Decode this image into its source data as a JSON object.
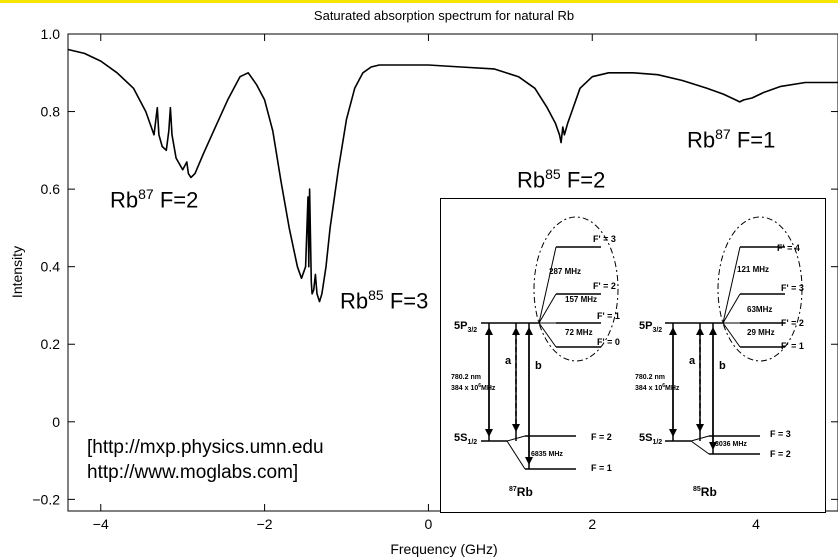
{
  "chart_data": {
    "type": "line",
    "title": "Saturated absorption spectrum for natural Rb",
    "xlabel": "Frequency (GHz)",
    "ylabel": "Intensity",
    "xlim": [
      -4.4,
      5.0
    ],
    "ylim": [
      -0.23,
      1.0
    ],
    "x_ticks": [
      -4,
      -2,
      0,
      2,
      4
    ],
    "x_tick_labels": [
      "−4",
      "−2",
      "0",
      "2",
      "4"
    ],
    "y_ticks": [
      -0.2,
      0,
      0.2,
      0.4,
      0.6,
      0.8,
      1.0
    ],
    "y_tick_labels": [
      "−0.2",
      "0",
      "0.2",
      "0.4",
      "0.6",
      "0.8",
      "1.0"
    ],
    "series": [
      {
        "x": [
          -4.4,
          -4.2,
          -4.0,
          -3.8,
          -3.6,
          -3.45,
          -3.35,
          -3.31,
          -3.29,
          -3.25,
          -3.2,
          -3.17,
          -3.15,
          -3.13,
          -3.08,
          -3.0,
          -2.95,
          -2.93,
          -2.9,
          -2.85,
          -2.75,
          -2.6,
          -2.45,
          -2.3,
          -2.2,
          -2.1,
          -2.0,
          -1.9,
          -1.8,
          -1.7,
          -1.6,
          -1.55,
          -1.5,
          -1.47,
          -1.46,
          -1.45,
          -1.43,
          -1.42,
          -1.4,
          -1.38,
          -1.36,
          -1.33,
          -1.3,
          -1.25,
          -1.2,
          -1.1,
          -1.0,
          -0.9,
          -0.8,
          -0.7,
          -0.6,
          -0.5,
          -0.3,
          0.0,
          0.4,
          0.8,
          1.1,
          1.3,
          1.45,
          1.55,
          1.6,
          1.62,
          1.64,
          1.66,
          1.7,
          1.75,
          1.85,
          2.0,
          2.2,
          2.5,
          2.8,
          3.1,
          3.4,
          3.6,
          3.75,
          3.8,
          3.85,
          3.95,
          4.1,
          4.3,
          4.6,
          5.0
        ],
        "y": [
          0.96,
          0.95,
          0.93,
          0.9,
          0.86,
          0.8,
          0.74,
          0.81,
          0.74,
          0.71,
          0.7,
          0.75,
          0.81,
          0.74,
          0.68,
          0.65,
          0.67,
          0.64,
          0.63,
          0.64,
          0.69,
          0.76,
          0.83,
          0.89,
          0.9,
          0.87,
          0.83,
          0.75,
          0.62,
          0.5,
          0.4,
          0.37,
          0.4,
          0.58,
          0.4,
          0.6,
          0.36,
          0.33,
          0.34,
          0.38,
          0.33,
          0.31,
          0.33,
          0.4,
          0.5,
          0.65,
          0.78,
          0.86,
          0.9,
          0.915,
          0.92,
          0.92,
          0.92,
          0.92,
          0.915,
          0.91,
          0.89,
          0.86,
          0.81,
          0.77,
          0.74,
          0.72,
          0.76,
          0.74,
          0.77,
          0.8,
          0.86,
          0.89,
          0.9,
          0.9,
          0.895,
          0.88,
          0.86,
          0.845,
          0.83,
          0.825,
          0.83,
          0.835,
          0.85,
          0.865,
          0.875,
          0.875
        ]
      }
    ],
    "annotations": [
      {
        "base": "Rb",
        "sup": "87",
        "rest": " F=2"
      },
      {
        "base": "Rb",
        "sup": "85",
        "rest": " F=3"
      },
      {
        "base": "Rb",
        "sup": "85",
        "rest": " F=2"
      },
      {
        "base": "Rb",
        "sup": "87",
        "rest": " F=1"
      }
    ],
    "grid": false
  },
  "urls": {
    "line1": "[http://mxp.physics.umn.edu",
    "line2": "http://www.moglabs.com]"
  },
  "inset": {
    "rb87": {
      "upper_state": "5P",
      "upper_sub": "3/2",
      "lower_state": "5S",
      "lower_sub": "1/2",
      "upper_levels": [
        "F' = 3",
        "F' = 2",
        "F' = 1",
        "F' = 0"
      ],
      "upper_splittings": [
        "287 MHz",
        "157 MHz",
        "72 MHz"
      ],
      "lower_levels": [
        "F = 2",
        "F = 1"
      ],
      "lower_splitting": "6835 MHz",
      "wavelength": "780.2 nm",
      "frequency_base": "384 x 10",
      "frequency_exp": "6",
      "frequency_unit": "MHz",
      "arrow_a": "a",
      "arrow_b": "b",
      "isotope_sup": "87",
      "isotope_base": "Rb"
    },
    "rb85": {
      "upper_state": "5P",
      "upper_sub": "3/2",
      "lower_state": "5S",
      "lower_sub": "1/2",
      "upper_levels": [
        "F' = 4",
        "F' = 3",
        "F' = 2",
        "F' = 1"
      ],
      "upper_splittings": [
        "121 MHz",
        "63MHz",
        "29 MHz"
      ],
      "lower_levels": [
        "F = 3",
        "F = 2"
      ],
      "lower_splitting": "3036 MHz",
      "wavelength": "780.2 nm",
      "frequency_base": "384 x 10",
      "frequency_exp": "6",
      "frequency_unit": "MHz",
      "arrow_a": "a",
      "arrow_b": "b",
      "isotope_sup": "85",
      "isotope_base": "Rb"
    }
  }
}
